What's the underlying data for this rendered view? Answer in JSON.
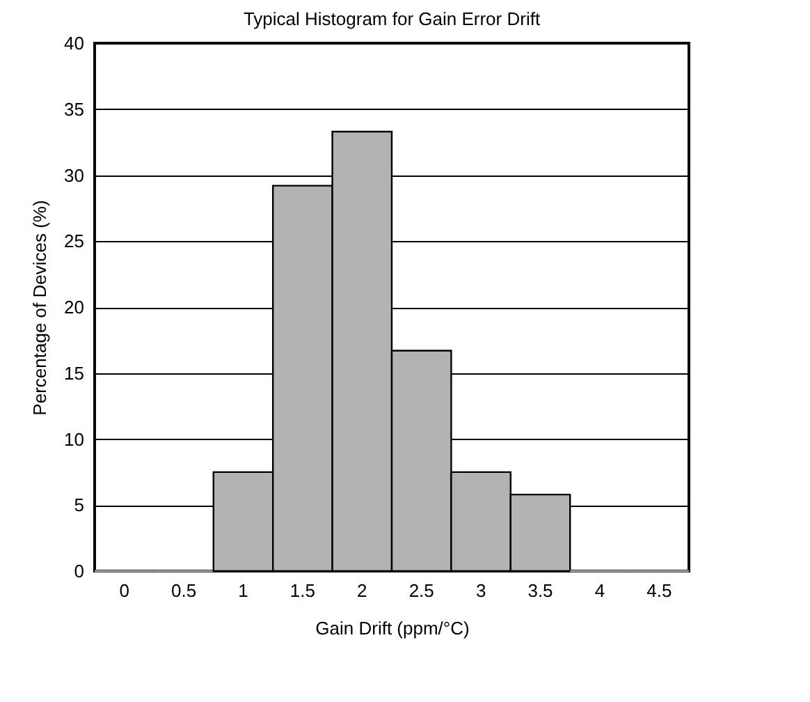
{
  "chart_data": {
    "type": "bar",
    "title": "Typical Histogram for Gain Error Drift",
    "xlabel": "Gain Drift (ppm/°C)",
    "ylabel": "Percentage of Devices (%)",
    "categories": [
      "0",
      "0.5",
      "1",
      "1.5",
      "2",
      "2.5",
      "3",
      "3.5",
      "4",
      "4.5"
    ],
    "values": [
      0,
      0,
      7.5,
      29.2,
      33.3,
      16.7,
      7.5,
      5.8,
      0,
      0
    ],
    "color": "#b3b3b3",
    "ylim": [
      0,
      40
    ],
    "yticks": [
      0,
      5,
      10,
      15,
      20,
      25,
      30,
      35,
      40
    ],
    "grid": "y"
  }
}
